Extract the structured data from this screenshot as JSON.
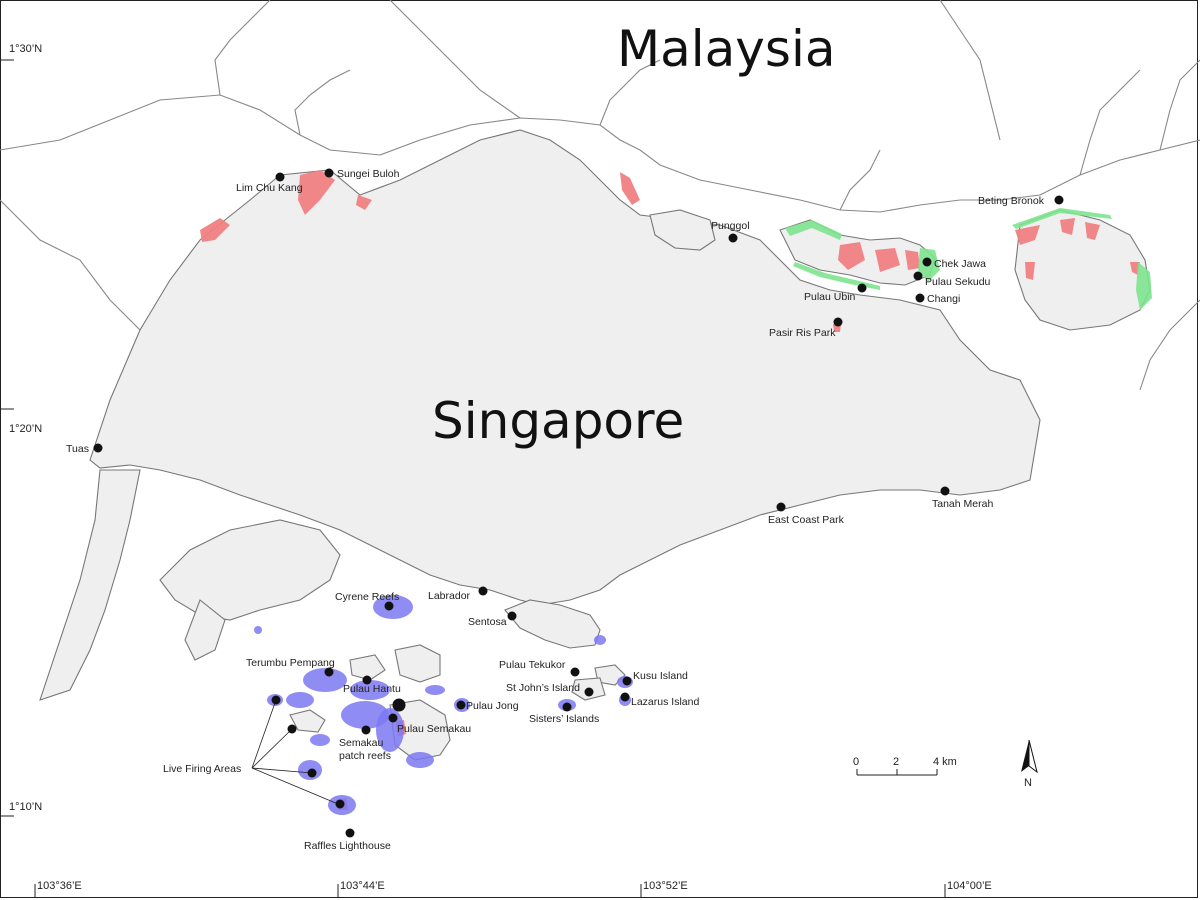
{
  "map": {
    "countries": {
      "malaysia": "Malaysia",
      "singapore": "Singapore"
    },
    "latitudes": [
      "1°30’N",
      "1°20’N",
      "1°10’N"
    ],
    "longitudes": [
      "103°36’E",
      "103°44’E",
      "103°52’E",
      "104°00’E"
    ],
    "sites": [
      "Lim Chu Kang",
      "Sungei Buloh",
      "Tuas",
      "Punggol",
      "Beting Bronok",
      "Chek Jawa",
      "Pulau Sekudu",
      "Pulau Ubin",
      "Changi",
      "Pasir Ris Park",
      "East Coast Park",
      "Tanah Merah",
      "Cyrene Reefs",
      "Labrador",
      "Sentosa",
      "Terumbu Pempang",
      "Pulau Hantu",
      "Pulau Tekukor",
      "Kusu Island",
      "St John’s Island",
      "Lazarus Island",
      "Pulau Jong",
      "Sisters’ Islands",
      "Pulau Semakau",
      "Semakau",
      "patch reefs",
      "Live Firing Areas",
      "Raffles Lighthouse"
    ],
    "scale_bar": {
      "labels": [
        "0",
        "2",
        "4 km"
      ]
    },
    "north_label": "N",
    "colors": {
      "mangrove": "#f07f82",
      "seagrass": "#7de38d",
      "coral_reef": "#7b78f2",
      "land": "#efefef"
    }
  }
}
